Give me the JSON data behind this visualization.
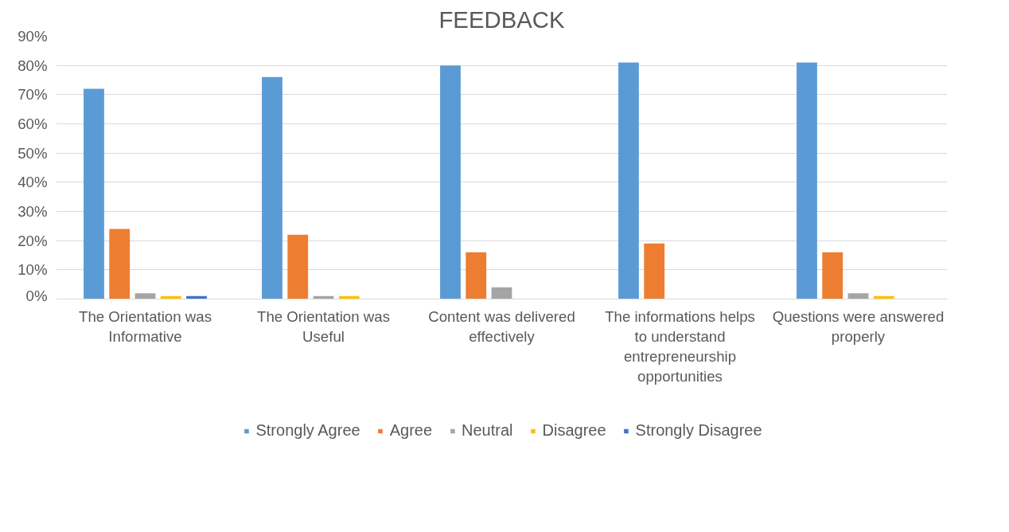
{
  "chart_data": {
    "type": "bar",
    "title": "FEEDBACK",
    "categories": [
      "The Orientation was Informative",
      "The Orientation was Useful",
      "Content was delivered effectively",
      "The informations helps to understand entrepreneurship opportunities",
      "Questions were answered properly"
    ],
    "series": [
      {
        "name": "Strongly Agree",
        "color": "#5b9bd5",
        "values": [
          72,
          76,
          80,
          81,
          81
        ]
      },
      {
        "name": "Agree",
        "color": "#ed7d31",
        "values": [
          24,
          22,
          16,
          19,
          16
        ]
      },
      {
        "name": "Neutral",
        "color": "#a5a5a5",
        "values": [
          2,
          1,
          4,
          0,
          2
        ]
      },
      {
        "name": "Disagree",
        "color": "#ffc000",
        "values": [
          1,
          1,
          0,
          0,
          1
        ]
      },
      {
        "name": "Strongly Disagree",
        "color": "#4472c4",
        "values": [
          1,
          0,
          0,
          0,
          0
        ]
      }
    ],
    "ylim": [
      0,
      90
    ],
    "yticks": [
      {
        "value": 0,
        "label": "0%"
      },
      {
        "value": 10,
        "label": "10%"
      },
      {
        "value": 20,
        "label": "20%"
      },
      {
        "value": 30,
        "label": "30%"
      },
      {
        "value": 40,
        "label": "40%"
      },
      {
        "value": 50,
        "label": "50%"
      },
      {
        "value": 60,
        "label": "60%"
      },
      {
        "value": 70,
        "label": "70%"
      },
      {
        "value": 80,
        "label": "80%"
      },
      {
        "value": 90,
        "label": "90%"
      }
    ],
    "grid": "y",
    "legend": "bottom"
  }
}
